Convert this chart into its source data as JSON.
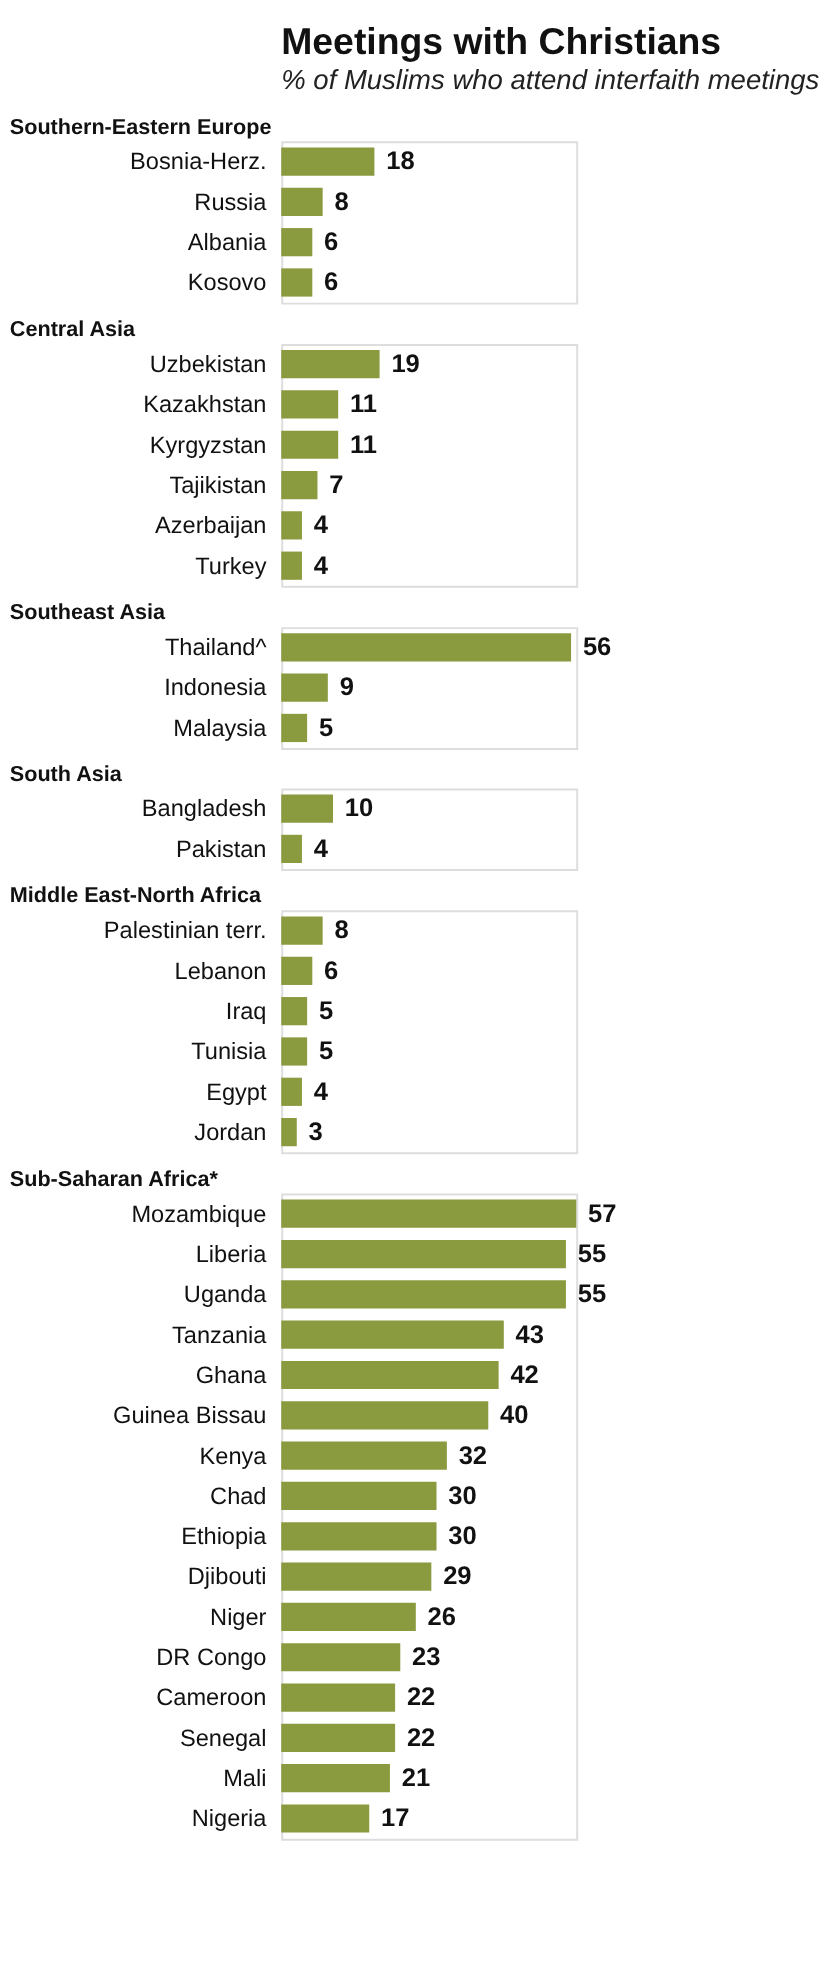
{
  "chart_data": [
    {
      "type": "other",
      "title": "Meetings with Christians",
      "subtitle": "% of Muslims who attend interfaith meetings"
    },
    {
      "type": "bar",
      "orientation": "horizontal",
      "title": "Southern-Eastern Europe",
      "categories": [
        "Bosnia-Herz.",
        "Russia",
        "Albania",
        "Kosovo"
      ],
      "values": [
        18,
        8,
        6,
        6
      ],
      "color": "#8a9a3e",
      "data_labels": true
    },
    {
      "type": "bar",
      "orientation": "horizontal",
      "title": "Central Asia",
      "categories": [
        "Uzbekistan",
        "Kazakhstan",
        "Kyrgyzstan",
        "Tajikistan",
        "Azerbaijan",
        "Turkey"
      ],
      "values": [
        19,
        11,
        11,
        7,
        4,
        4
      ],
      "color": "#8a9a3e",
      "data_labels": true
    },
    {
      "type": "bar",
      "orientation": "horizontal",
      "title": "Southeast Asia",
      "categories": [
        "Thailand^",
        "Indonesia",
        "Malaysia"
      ],
      "values": [
        56,
        9,
        5
      ],
      "color": "#8a9a3e",
      "data_labels": true
    },
    {
      "type": "bar",
      "orientation": "horizontal",
      "title": "South Asia",
      "categories": [
        "Bangladesh",
        "Pakistan"
      ],
      "values": [
        10,
        4
      ],
      "color": "#8a9a3e",
      "data_labels": true
    },
    {
      "type": "bar",
      "orientation": "horizontal",
      "title": "Middle East-North Africa",
      "categories": [
        "Palestinian terr.",
        "Lebanon",
        "Iraq",
        "Tunisia",
        "Egypt",
        "Jordan"
      ],
      "values": [
        8,
        6,
        5,
        5,
        4,
        3
      ],
      "color": "#8a9a3e",
      "data_labels": true
    },
    {
      "type": "bar",
      "orientation": "horizontal",
      "title": "Sub-Saharan Africa*",
      "categories": [
        "Mozambique",
        "Liberia",
        "Uganda",
        "Tanzania",
        "Ghana",
        "Guinea Bissau",
        "Kenya",
        "Chad",
        "Ethiopia",
        "Djibouti",
        "Niger",
        "DR Congo",
        "Cameroon",
        "Senegal",
        "Mali",
        "Nigeria"
      ],
      "values": [
        57,
        55,
        55,
        43,
        42,
        40,
        32,
        30,
        30,
        29,
        26,
        23,
        22,
        22,
        21,
        17
      ],
      "color": "#8a9a3e",
      "data_labels": true
    }
  ]
}
